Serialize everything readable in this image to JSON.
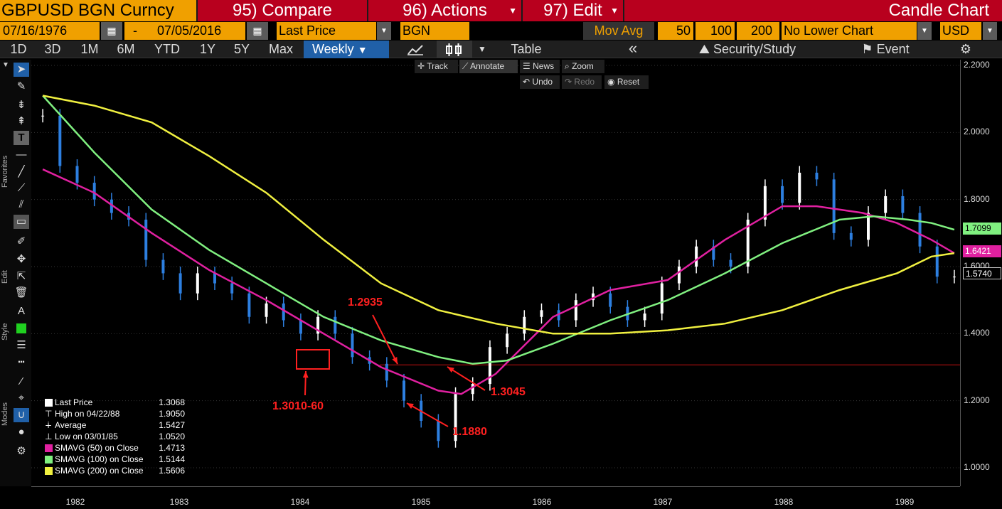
{
  "header": {
    "ticker_title": "GBPUSD BGN Curncy",
    "compare_label": "95) Compare",
    "actions_label": "96) Actions",
    "edit_label": "97) Edit",
    "chart_type_label": "Candle Chart"
  },
  "toolbar2": {
    "start_date": "07/16/1976",
    "dash": "-",
    "end_date": "07/05/2016",
    "price_field": "Last Price",
    "source": "BGN",
    "mov_avg_label": "Mov Avg",
    "ma1": "50",
    "ma2": "100",
    "ma3": "200",
    "lower_chart": "No Lower Chart",
    "currency": "USD"
  },
  "toolbar3": {
    "periods": [
      "1D",
      "3D",
      "1M",
      "6M",
      "YTD",
      "1Y",
      "5Y",
      "Max"
    ],
    "frequency": "Weekly",
    "table_label": "Table",
    "collapse_icon": "«",
    "security_study_label": "Security/Study",
    "event_label": "Event"
  },
  "subtools": {
    "track": "Track",
    "annotate": "Annotate",
    "news": "News",
    "zoom": "Zoom",
    "undo": "Undo",
    "redo": "Redo",
    "reset": "Reset"
  },
  "side_labels": {
    "favorites": "Favorites",
    "edit": "Edit",
    "style": "Style",
    "modes": "Modes"
  },
  "y_axis": {
    "ticks": [
      "2.2000",
      "2.0000",
      "1.8000",
      "1.6000",
      "1.4000",
      "1.2000",
      "1.0000"
    ],
    "badge_green": "1.7099",
    "badge_magenta": "1.6421",
    "badge_white": "1.5740"
  },
  "x_axis": {
    "ticks": [
      "1982",
      "1983",
      "1984",
      "1985",
      "1986",
      "1987",
      "1988",
      "1989"
    ]
  },
  "legend": {
    "rows": [
      {
        "label": "Last Price",
        "value": "1.3068"
      },
      {
        "label": "High on 04/22/88",
        "value": "1.9050"
      },
      {
        "label": "Average",
        "value": "1.5427"
      },
      {
        "label": "Low on 03/01/85",
        "value": "1.0520"
      },
      {
        "label": "SMAVG (50) on Close",
        "value": "1.4713"
      },
      {
        "label": "SMAVG (100) on Close",
        "value": "1.5144"
      },
      {
        "label": "SMAVG (200) on Close",
        "value": "1.5606"
      }
    ]
  },
  "annotations": {
    "a1": "1.3010-60",
    "a2": "1.2935",
    "a3": "1.3045",
    "a4": "1.1880"
  },
  "colors": {
    "sma50": "#e020a0",
    "sma100": "#80f080",
    "sma200": "#f0f040",
    "accent_orange": "#f0a000",
    "accent_red": "#b8001e",
    "annotation_red": "#ff2020"
  },
  "chart_data": {
    "type": "line",
    "y_range": [
      1.0,
      2.2
    ],
    "horizontal_line": 1.3068,
    "series": [
      {
        "name": "Last Price",
        "x": [
          1981.55,
          1981.7,
          1981.85,
          1982.0,
          1982.15,
          1982.3,
          1982.45,
          1982.6,
          1982.75,
          1982.9,
          1983.05,
          1983.2,
          1983.35,
          1983.5,
          1983.65,
          1983.8,
          1983.95,
          1984.1,
          1984.25,
          1984.4,
          1984.55,
          1984.7,
          1984.85,
          1985.0,
          1985.15,
          1985.3,
          1985.45,
          1985.6,
          1985.75,
          1985.9,
          1986.05,
          1986.2,
          1986.35,
          1986.5,
          1986.65,
          1986.8,
          1986.95,
          1987.1,
          1987.25,
          1987.4,
          1987.55,
          1987.7,
          1987.85,
          1988.0,
          1988.15,
          1988.3,
          1988.45,
          1988.6,
          1988.75,
          1988.9,
          1989.05,
          1989.2,
          1989.35,
          1989.5
        ],
        "values": [
          2.05,
          1.9,
          1.85,
          1.8,
          1.76,
          1.74,
          1.62,
          1.58,
          1.52,
          1.58,
          1.55,
          1.52,
          1.45,
          1.49,
          1.44,
          1.4,
          1.45,
          1.4,
          1.33,
          1.31,
          1.26,
          1.2,
          1.14,
          1.08,
          1.22,
          1.25,
          1.36,
          1.4,
          1.45,
          1.47,
          1.44,
          1.5,
          1.52,
          1.48,
          1.44,
          1.46,
          1.55,
          1.6,
          1.66,
          1.62,
          1.6,
          1.74,
          1.84,
          1.79,
          1.88,
          1.86,
          1.7,
          1.68,
          1.76,
          1.81,
          1.76,
          1.66,
          1.57,
          1.57
        ]
      },
      {
        "name": "SMAVG (50) on Close",
        "x": [
          1981.55,
          1982.0,
          1982.5,
          1983.0,
          1983.5,
          1984.0,
          1984.5,
          1985.0,
          1985.2,
          1985.5,
          1986.0,
          1986.5,
          1987.0,
          1987.5,
          1988.0,
          1988.3,
          1988.7,
          1989.0,
          1989.3,
          1989.5
        ],
        "values": [
          1.89,
          1.82,
          1.7,
          1.59,
          1.5,
          1.4,
          1.3,
          1.23,
          1.22,
          1.28,
          1.45,
          1.53,
          1.56,
          1.68,
          1.78,
          1.78,
          1.76,
          1.73,
          1.68,
          1.64
        ]
      },
      {
        "name": "SMAVG (100) on Close",
        "x": [
          1981.55,
          1982.0,
          1982.5,
          1983.0,
          1983.5,
          1984.0,
          1984.5,
          1985.0,
          1985.3,
          1985.6,
          1986.0,
          1986.5,
          1987.0,
          1987.5,
          1988.0,
          1988.5,
          1988.8,
          1989.1,
          1989.3,
          1989.5
        ],
        "values": [
          2.11,
          1.94,
          1.77,
          1.65,
          1.55,
          1.45,
          1.38,
          1.33,
          1.31,
          1.32,
          1.37,
          1.44,
          1.5,
          1.58,
          1.67,
          1.74,
          1.75,
          1.74,
          1.73,
          1.71
        ]
      },
      {
        "name": "SMAVG (200) on Close",
        "x": [
          1981.55,
          1982.0,
          1982.5,
          1983.0,
          1983.5,
          1984.0,
          1984.5,
          1985.0,
          1985.5,
          1986.0,
          1986.5,
          1987.0,
          1987.5,
          1988.0,
          1988.5,
          1989.0,
          1989.3,
          1989.5
        ],
        "values": [
          2.11,
          2.08,
          2.03,
          1.93,
          1.82,
          1.68,
          1.55,
          1.47,
          1.43,
          1.4,
          1.4,
          1.41,
          1.43,
          1.47,
          1.53,
          1.58,
          1.63,
          1.64
        ]
      }
    ]
  }
}
